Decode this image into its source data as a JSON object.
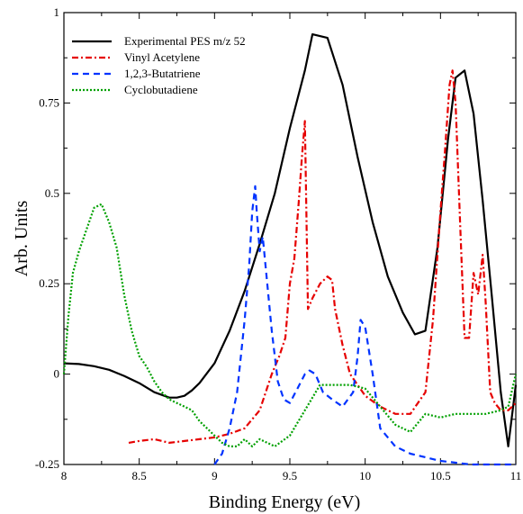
{
  "chart_data": {
    "type": "line",
    "title": "",
    "xlabel": "Binding Energy (eV)",
    "ylabel": "Arb. Units",
    "xlim": [
      8,
      11
    ],
    "ylim": [
      -0.25,
      1
    ],
    "xticks": [
      8,
      8.5,
      9,
      9.5,
      10,
      10.5,
      11
    ],
    "xtick_labels": [
      "8",
      "8.5",
      "9",
      "9.5",
      "10",
      "10.5",
      "11"
    ],
    "yticks": [
      -0.25,
      0,
      0.25,
      0.5,
      0.75,
      1
    ],
    "ytick_labels": [
      "-0.25",
      "0",
      "0.25",
      "0.5",
      "0.75",
      "1"
    ],
    "grid": false,
    "legend_position": "top-left",
    "series": [
      {
        "name": "Experimental PES m/z 52",
        "color": "#000000",
        "dash": "solid",
        "x": [
          8.0,
          8.1,
          8.2,
          8.3,
          8.4,
          8.5,
          8.6,
          8.7,
          8.75,
          8.8,
          8.85,
          8.9,
          9.0,
          9.1,
          9.2,
          9.3,
          9.4,
          9.5,
          9.6,
          9.65,
          9.75,
          9.85,
          9.95,
          10.05,
          10.15,
          10.25,
          10.33,
          10.4,
          10.48,
          10.55,
          10.6,
          10.66,
          10.72,
          10.78,
          10.84,
          10.9,
          10.95,
          11.0
        ],
        "y": [
          0.03,
          0.028,
          0.022,
          0.012,
          -0.005,
          -0.025,
          -0.05,
          -0.065,
          -0.065,
          -0.06,
          -0.045,
          -0.025,
          0.03,
          0.12,
          0.23,
          0.36,
          0.5,
          0.68,
          0.84,
          0.94,
          0.93,
          0.8,
          0.6,
          0.42,
          0.27,
          0.17,
          0.11,
          0.12,
          0.35,
          0.65,
          0.82,
          0.84,
          0.72,
          0.48,
          0.22,
          -0.05,
          -0.2,
          -0.03
        ]
      },
      {
        "name": "Vinyl Acetylene",
        "color": "#e60000",
        "dash": "dashdot",
        "x": [
          8.43,
          8.5,
          8.6,
          8.7,
          8.8,
          8.9,
          9.0,
          9.1,
          9.2,
          9.3,
          9.38,
          9.43,
          9.47,
          9.5,
          9.53,
          9.56,
          9.58,
          9.6,
          9.62,
          9.65,
          9.7,
          9.75,
          9.78,
          9.8,
          9.85,
          9.9,
          9.95,
          10.0,
          10.1,
          10.2,
          10.3,
          10.35,
          10.4,
          10.45,
          10.5,
          10.53,
          10.56,
          10.58,
          10.6,
          10.63,
          10.66,
          10.69,
          10.72,
          10.75,
          10.78,
          10.8,
          10.83,
          10.86,
          10.9,
          10.95,
          11.0
        ],
        "y": [
          -0.19,
          -0.185,
          -0.18,
          -0.19,
          -0.185,
          -0.18,
          -0.175,
          -0.165,
          -0.15,
          -0.1,
          0.0,
          0.05,
          0.1,
          0.25,
          0.32,
          0.48,
          0.6,
          0.7,
          0.18,
          0.21,
          0.25,
          0.27,
          0.26,
          0.18,
          0.08,
          0.0,
          -0.03,
          -0.06,
          -0.09,
          -0.11,
          -0.11,
          -0.08,
          -0.05,
          0.15,
          0.45,
          0.62,
          0.8,
          0.84,
          0.75,
          0.42,
          0.1,
          0.1,
          0.28,
          0.22,
          0.33,
          0.2,
          -0.05,
          -0.08,
          -0.1,
          -0.1,
          -0.08
        ]
      },
      {
        "name": "1,2,3-Butatriene",
        "color": "#0033ff",
        "dash": "dashed",
        "x": [
          9.0,
          9.05,
          9.1,
          9.15,
          9.2,
          9.23,
          9.25,
          9.27,
          9.28,
          9.3,
          9.32,
          9.35,
          9.38,
          9.42,
          9.46,
          9.5,
          9.55,
          9.6,
          9.63,
          9.67,
          9.72,
          9.78,
          9.85,
          9.92,
          9.95,
          9.97,
          10.0,
          10.05,
          10.1,
          10.2,
          10.3,
          10.4,
          10.5,
          10.6,
          10.7,
          10.8,
          10.9,
          11.0
        ],
        "y": [
          -0.25,
          -0.22,
          -0.15,
          -0.05,
          0.15,
          0.3,
          0.45,
          0.52,
          0.45,
          0.34,
          0.38,
          0.25,
          0.12,
          -0.02,
          -0.07,
          -0.08,
          -0.04,
          0.0,
          0.01,
          0.0,
          -0.05,
          -0.07,
          -0.09,
          -0.05,
          0.05,
          0.15,
          0.13,
          0.0,
          -0.15,
          -0.2,
          -0.22,
          -0.23,
          -0.24,
          -0.245,
          -0.25,
          -0.25,
          -0.25,
          -0.25
        ]
      },
      {
        "name": "Cyclobutadiene",
        "color": "#00a000",
        "dash": "dotted",
        "x": [
          8.0,
          8.03,
          8.06,
          8.1,
          8.15,
          8.2,
          8.25,
          8.3,
          8.35,
          8.4,
          8.45,
          8.5,
          8.55,
          8.6,
          8.65,
          8.7,
          8.75,
          8.8,
          8.85,
          8.9,
          8.95,
          9.0,
          9.05,
          9.1,
          9.15,
          9.2,
          9.25,
          9.3,
          9.35,
          9.4,
          9.5,
          9.6,
          9.7,
          9.8,
          9.9,
          10.0,
          10.1,
          10.2,
          10.3,
          10.4,
          10.5,
          10.6,
          10.7,
          10.8,
          10.9,
          10.95,
          11.0
        ],
        "y": [
          0.0,
          0.16,
          0.28,
          0.34,
          0.4,
          0.46,
          0.47,
          0.42,
          0.35,
          0.22,
          0.12,
          0.05,
          0.02,
          -0.02,
          -0.05,
          -0.07,
          -0.08,
          -0.09,
          -0.1,
          -0.13,
          -0.15,
          -0.17,
          -0.19,
          -0.2,
          -0.2,
          -0.18,
          -0.2,
          -0.18,
          -0.19,
          -0.2,
          -0.17,
          -0.1,
          -0.03,
          -0.03,
          -0.03,
          -0.04,
          -0.09,
          -0.14,
          -0.16,
          -0.11,
          -0.12,
          -0.11,
          -0.11,
          -0.11,
          -0.1,
          -0.09,
          0.0
        ]
      }
    ]
  }
}
